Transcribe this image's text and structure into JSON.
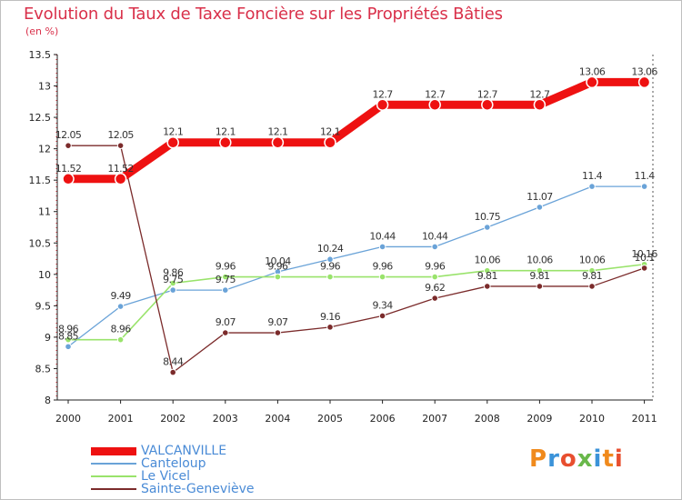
{
  "title": "Evolution du Taux de Taxe Foncière sur les Propriétés Bâties",
  "unit_label": "(en %)",
  "logo_text": "Proxiti",
  "chart_data": {
    "type": "line",
    "title": "Evolution du Taux de Taxe Foncière sur les Propriétés Bâties",
    "ylabel": "(en %)",
    "xlabel": "",
    "x": [
      "2000",
      "2001",
      "2002",
      "2003",
      "2004",
      "2005",
      "2006",
      "2007",
      "2008",
      "2009",
      "2010",
      "2011"
    ],
    "ylim": [
      8,
      13.5
    ],
    "yticks": [
      "8",
      "8.5",
      "9",
      "9.5",
      "10",
      "10.5",
      "11",
      "11.5",
      "12",
      "12.5",
      "13",
      "13.5"
    ],
    "legend_position": "bottom-left",
    "series": [
      {
        "name": "VALCANVILLE",
        "color": "#ee1111",
        "values": [
          11.52,
          11.52,
          12.1,
          12.1,
          12.1,
          12.1,
          12.7,
          12.7,
          12.7,
          12.7,
          13.06,
          13.06
        ],
        "labels": [
          "11.52",
          "11.52",
          "12.1",
          "12.1",
          "12.1",
          "12.1",
          "12.7",
          "12.7",
          "12.7",
          "12.7",
          "13.06",
          "13.06"
        ]
      },
      {
        "name": "Canteloup",
        "color": "#6aa3d8",
        "values": [
          8.85,
          9.49,
          9.75,
          9.75,
          10.04,
          10.24,
          10.44,
          10.44,
          10.75,
          11.07,
          11.4,
          11.4
        ],
        "labels": [
          "8.85",
          "9.49",
          "9.75",
          "9.75",
          "10.04",
          "10.24",
          "10.44",
          "10.44",
          "10.75",
          "11.07",
          "11.4",
          "11.4"
        ]
      },
      {
        "name": "Le Vicel",
        "color": "#99e36b",
        "values": [
          8.96,
          8.96,
          9.86,
          9.96,
          9.96,
          9.96,
          9.96,
          9.96,
          10.06,
          10.06,
          10.06,
          10.16
        ],
        "labels": [
          "8.96",
          "8.96",
          "9.86",
          "9.96",
          "9.96",
          "9.96",
          "9.96",
          "9.96",
          "10.06",
          "10.06",
          "10.06",
          "10.16"
        ]
      },
      {
        "name": "Sainte-Geneviève",
        "color": "#7b2b2b",
        "values": [
          12.05,
          12.05,
          8.44,
          9.07,
          9.07,
          9.16,
          9.34,
          9.62,
          9.81,
          9.81,
          9.81,
          10.1
        ],
        "labels": [
          "12.05",
          "12.05",
          "8.44",
          "9.07",
          "9.07",
          "9.16",
          "9.34",
          "9.62",
          "9.81",
          "9.81",
          "9.81",
          "10.1"
        ]
      }
    ]
  }
}
